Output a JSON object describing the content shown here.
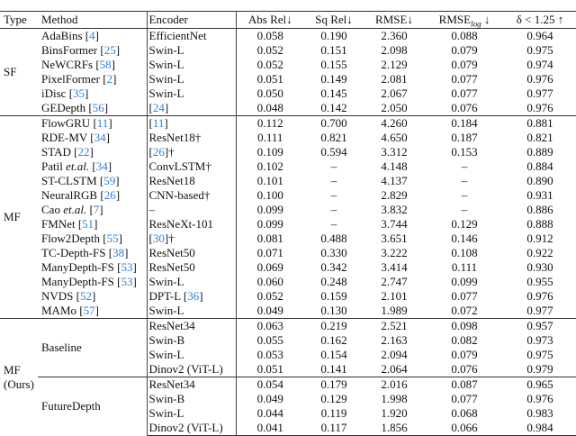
{
  "header": {
    "type": "Type",
    "method": "Method",
    "encoder": "Encoder",
    "abs_rel": "Abs Rel↓",
    "sq_rel": "Sq Rel↓",
    "rmse": "RMSE↓",
    "rmse_log": {
      "base": "RMSE",
      "sub": "log",
      "arrow": " ↓"
    },
    "delta": "δ < 1.25 ↑"
  },
  "colors": {
    "ref": "#2f7fd8",
    "text": "#111111",
    "rule": "#333333"
  },
  "groups": [
    {
      "type": "SF",
      "rows": [
        {
          "method": {
            "name": "AdaBins",
            "ref": "4"
          },
          "encoder": {
            "text": "EfficientNet"
          },
          "values": [
            "0.058",
            "0.190",
            "2.360",
            "0.088",
            "0.964"
          ]
        },
        {
          "method": {
            "name": "BinsFormer",
            "ref": "25"
          },
          "encoder": {
            "text": "Swin-L"
          },
          "values": [
            "0.052",
            "0.151",
            "2.098",
            "0.079",
            "0.975"
          ]
        },
        {
          "method": {
            "name": "NeWCRFs",
            "ref": "58"
          },
          "encoder": {
            "text": "Swin-L"
          },
          "values": [
            "0.052",
            "0.155",
            "2.129",
            "0.079",
            "0.974"
          ]
        },
        {
          "method": {
            "name": "PixelFormer",
            "ref": "2"
          },
          "encoder": {
            "text": "Swin-L"
          },
          "values": [
            "0.051",
            "0.149",
            "2.081",
            "0.077",
            "0.976"
          ]
        },
        {
          "method": {
            "name": "iDisc",
            "ref": "35"
          },
          "encoder": {
            "text": "Swin-L"
          },
          "values": [
            "0.050",
            "0.145",
            "2.067",
            "0.077",
            "0.977"
          ]
        },
        {
          "method": {
            "name": "GEDepth",
            "ref": "56"
          },
          "encoder": {
            "text": " ",
            "ref": "24"
          },
          "values": [
            "0.048",
            "0.142",
            "2.050",
            "0.076",
            "0.976"
          ]
        }
      ]
    },
    {
      "type": "MF",
      "rows": [
        {
          "method": {
            "name": "FlowGRU",
            "ref": "11"
          },
          "encoder": {
            "text": " ",
            "ref": "11"
          },
          "values": [
            "0.112",
            "0.700",
            "4.260",
            "0.184",
            "0.881"
          ]
        },
        {
          "method": {
            "name": "RDE-MV",
            "ref": "34"
          },
          "encoder": {
            "text": "ResNet18†"
          },
          "values": [
            "0.111",
            "0.821",
            "4.650",
            "0.187",
            "0.821"
          ]
        },
        {
          "method": {
            "name": "STAD",
            "ref": "22"
          },
          "encoder": {
            "text": " ",
            "ref": "26",
            "suffix": "†"
          },
          "values": [
            "0.109",
            "0.594",
            "3.312",
            "0.153",
            "0.889"
          ]
        },
        {
          "method": {
            "name": "Patil",
            "italic": "et.al.",
            "ref": "34"
          },
          "encoder": {
            "text": "ConvLSTM†"
          },
          "values": [
            "0.102",
            "–",
            "4.148",
            "–",
            "0.884"
          ]
        },
        {
          "method": {
            "name": "ST-CLSTM",
            "ref": "59"
          },
          "encoder": {
            "text": "ResNet18"
          },
          "values": [
            "0.101",
            "–",
            "4.137",
            "–",
            "0.890"
          ]
        },
        {
          "method": {
            "name": "NeuralRGB",
            "ref": "26"
          },
          "encoder": {
            "text": "CNN-based†"
          },
          "values": [
            "0.100",
            "–",
            "2.829",
            "–",
            "0.931"
          ]
        },
        {
          "method": {
            "name": "Cao",
            "italic": "et.al.",
            "ref": "7"
          },
          "encoder": {
            "text": "–"
          },
          "values": [
            "0.099",
            "–",
            "3.832",
            "–",
            "0.886"
          ]
        },
        {
          "method": {
            "name": "FMNet",
            "ref": "51"
          },
          "encoder": {
            "text": "ResNeXt-101"
          },
          "values": [
            "0.099",
            "–",
            "3.744",
            "0.129",
            "0.888"
          ]
        },
        {
          "method": {
            "name": "Flow2Depth",
            "ref": "55"
          },
          "encoder": {
            "text": " ",
            "ref": "30",
            "suffix": "†"
          },
          "values": [
            "0.081",
            "0.488",
            "3.651",
            "0.146",
            "0.912"
          ]
        },
        {
          "method": {
            "name": "TC-Depth-FS",
            "ref": "38"
          },
          "encoder": {
            "text": "ResNet50"
          },
          "values": [
            "0.071",
            "0.330",
            "3.222",
            "0.108",
            "0.922"
          ]
        },
        {
          "method": {
            "name": "ManyDepth-FS",
            "ref": "53"
          },
          "encoder": {
            "text": "ResNet50"
          },
          "values": [
            "0.069",
            "0.342",
            "3.414",
            "0.111",
            "0.930"
          ]
        },
        {
          "method": {
            "name": "ManyDepth-FS",
            "ref": "53"
          },
          "encoder": {
            "text": "Swin-L"
          },
          "values": [
            "0.060",
            "0.248",
            "2.747",
            "0.099",
            "0.955"
          ]
        },
        {
          "method": {
            "name": "NVDS",
            "ref": "52"
          },
          "encoder": {
            "text": "DPT-L ",
            "ref": "36"
          },
          "values": [
            "0.052",
            "0.159",
            "2.101",
            "0.077",
            "0.976"
          ]
        },
        {
          "method": {
            "name": "MAMo",
            "ref": "57"
          },
          "encoder": {
            "text": "Swin-L"
          },
          "values": [
            "0.049",
            "0.130",
            "1.989",
            "0.072",
            "0.977"
          ]
        }
      ]
    }
  ],
  "ours": {
    "type_line1": "MF",
    "type_line2": "(Ours)",
    "subgroups": [
      {
        "method": "Baseline",
        "rows": [
          {
            "encoder": "ResNet34",
            "values": [
              "0.063",
              "0.219",
              "2.521",
              "0.098",
              "0.957"
            ]
          },
          {
            "encoder": "Swin-B",
            "values": [
              "0.055",
              "0.162",
              "2.163",
              "0.082",
              "0.973"
            ]
          },
          {
            "encoder": "Swin-L",
            "values": [
              "0.053",
              "0.154",
              "2.094",
              "0.079",
              "0.975"
            ]
          },
          {
            "encoder": "Dinov2 (ViT-L)",
            "values": [
              "0.051",
              "0.141",
              "2.064",
              "0.076",
              "0.979"
            ]
          }
        ]
      },
      {
        "method": "FutureDepth",
        "rows": [
          {
            "encoder": "ResNet34",
            "values": [
              "0.054",
              "0.179",
              "2.016",
              "0.087",
              "0.965"
            ]
          },
          {
            "encoder": "Swin-B",
            "values": [
              "0.049",
              "0.129",
              "1.998",
              "0.077",
              "0.976"
            ]
          },
          {
            "encoder": "Swin-L",
            "values": [
              "0.044",
              "0.119",
              "1.920",
              "0.068",
              "0.983"
            ]
          },
          {
            "encoder": "Dinov2 (ViT-L)",
            "values": [
              "0.041",
              "0.117",
              "1.856",
              "0.066",
              "0.984"
            ],
            "bold": true
          }
        ]
      }
    ]
  }
}
